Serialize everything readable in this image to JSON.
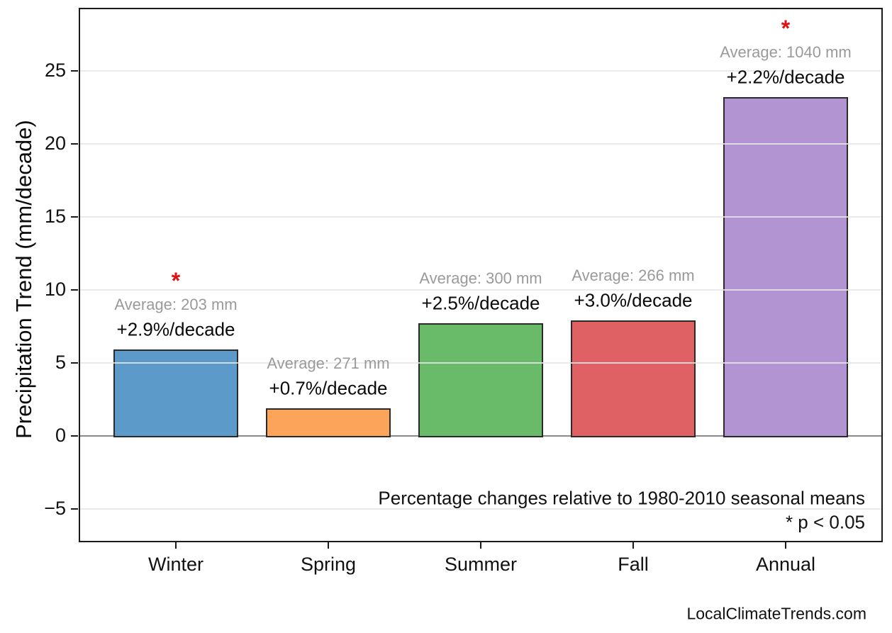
{
  "page": {
    "watermark": "LocalClimateTrends.com"
  },
  "chart_data": {
    "type": "bar",
    "title": "",
    "categories": [
      "Winter",
      "Spring",
      "Summer",
      "Fall",
      "Annual"
    ],
    "values": [
      5.9,
      1.9,
      7.7,
      7.9,
      23.2
    ],
    "bars": [
      {
        "category": "Winter",
        "value": 5.9,
        "average_label": "Average: 203 mm",
        "trend_label": "+2.9%/decade",
        "significant": true,
        "color": "#5C9BC9"
      },
      {
        "category": "Spring",
        "value": 1.9,
        "average_label": "Average: 271 mm",
        "trend_label": "+0.7%/decade",
        "significant": false,
        "color": "#FBA45A"
      },
      {
        "category": "Summer",
        "value": 7.7,
        "average_label": "Average: 300 mm",
        "trend_label": "+2.5%/decade",
        "significant": false,
        "color": "#69BB69"
      },
      {
        "category": "Fall",
        "value": 7.9,
        "average_label": "Average: 266 mm",
        "trend_label": "+3.0%/decade",
        "significant": false,
        "color": "#DF6164"
      },
      {
        "category": "Annual",
        "value": 23.2,
        "average_label": "Average: 1040 mm",
        "trend_label": "+2.2%/decade",
        "significant": true,
        "color": "#B294D2"
      }
    ],
    "xlabel": "",
    "ylabel": "Precipitation Trend (mm/decade)",
    "ylim": [
      -7.2,
      29.2
    ],
    "yticks": [
      -5,
      0,
      5,
      10,
      15,
      20,
      25
    ],
    "ytick_labels": [
      "−5",
      "0",
      "5",
      "10",
      "15",
      "20",
      "25"
    ],
    "grid": "horizontal light-gray lines drawn over bars",
    "legend": "none",
    "annotations": {
      "note": "Percentage changes relative to 1980-2010 seasonal means",
      "significance_note": "* p < 0.05",
      "asterisk_color": "#DD1111"
    },
    "colors": {
      "grid": "#E6E6E6",
      "zero_line": "#8A8A8A",
      "bar_edge": "#2A2A2A",
      "average_text": "#9A9A9A",
      "plot_border": "#1A1A1A"
    }
  }
}
